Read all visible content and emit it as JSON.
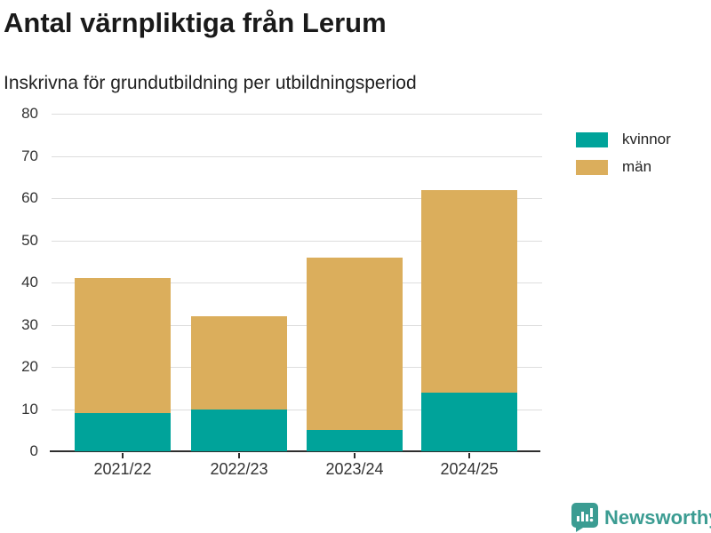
{
  "title": "Antal värnpliktiga från Lerum",
  "subtitle": "Inskrivna för grundutbildning per utbildningsperiod",
  "legend": {
    "items": [
      {
        "label": "kvinnor",
        "color": "#00A39A"
      },
      {
        "label": "män",
        "color": "#DBAE5C"
      }
    ]
  },
  "footer": {
    "brand": "Newsworthy",
    "brand_color": "#3b9c92",
    "logo_icon": "speech-bubble-bar-chart-icon"
  },
  "chart_data": {
    "type": "bar",
    "stacked": true,
    "title": "Antal värnpliktiga från Lerum",
    "subtitle": "Inskrivna för grundutbildning per utbildningsperiod",
    "categories": [
      "2021/22",
      "2022/23",
      "2023/24",
      "2024/25"
    ],
    "series": [
      {
        "name": "kvinnor",
        "color": "#00A39A",
        "values": [
          9,
          10,
          5,
          14
        ]
      },
      {
        "name": "män",
        "color": "#DBAE5C",
        "values": [
          32,
          22,
          41,
          48
        ]
      }
    ],
    "xlabel": "",
    "ylabel": "",
    "ylim": [
      0,
      80
    ],
    "yticks": [
      0,
      10,
      20,
      30,
      40,
      50,
      60,
      70,
      80
    ],
    "grid": true,
    "legend_position": "right"
  }
}
